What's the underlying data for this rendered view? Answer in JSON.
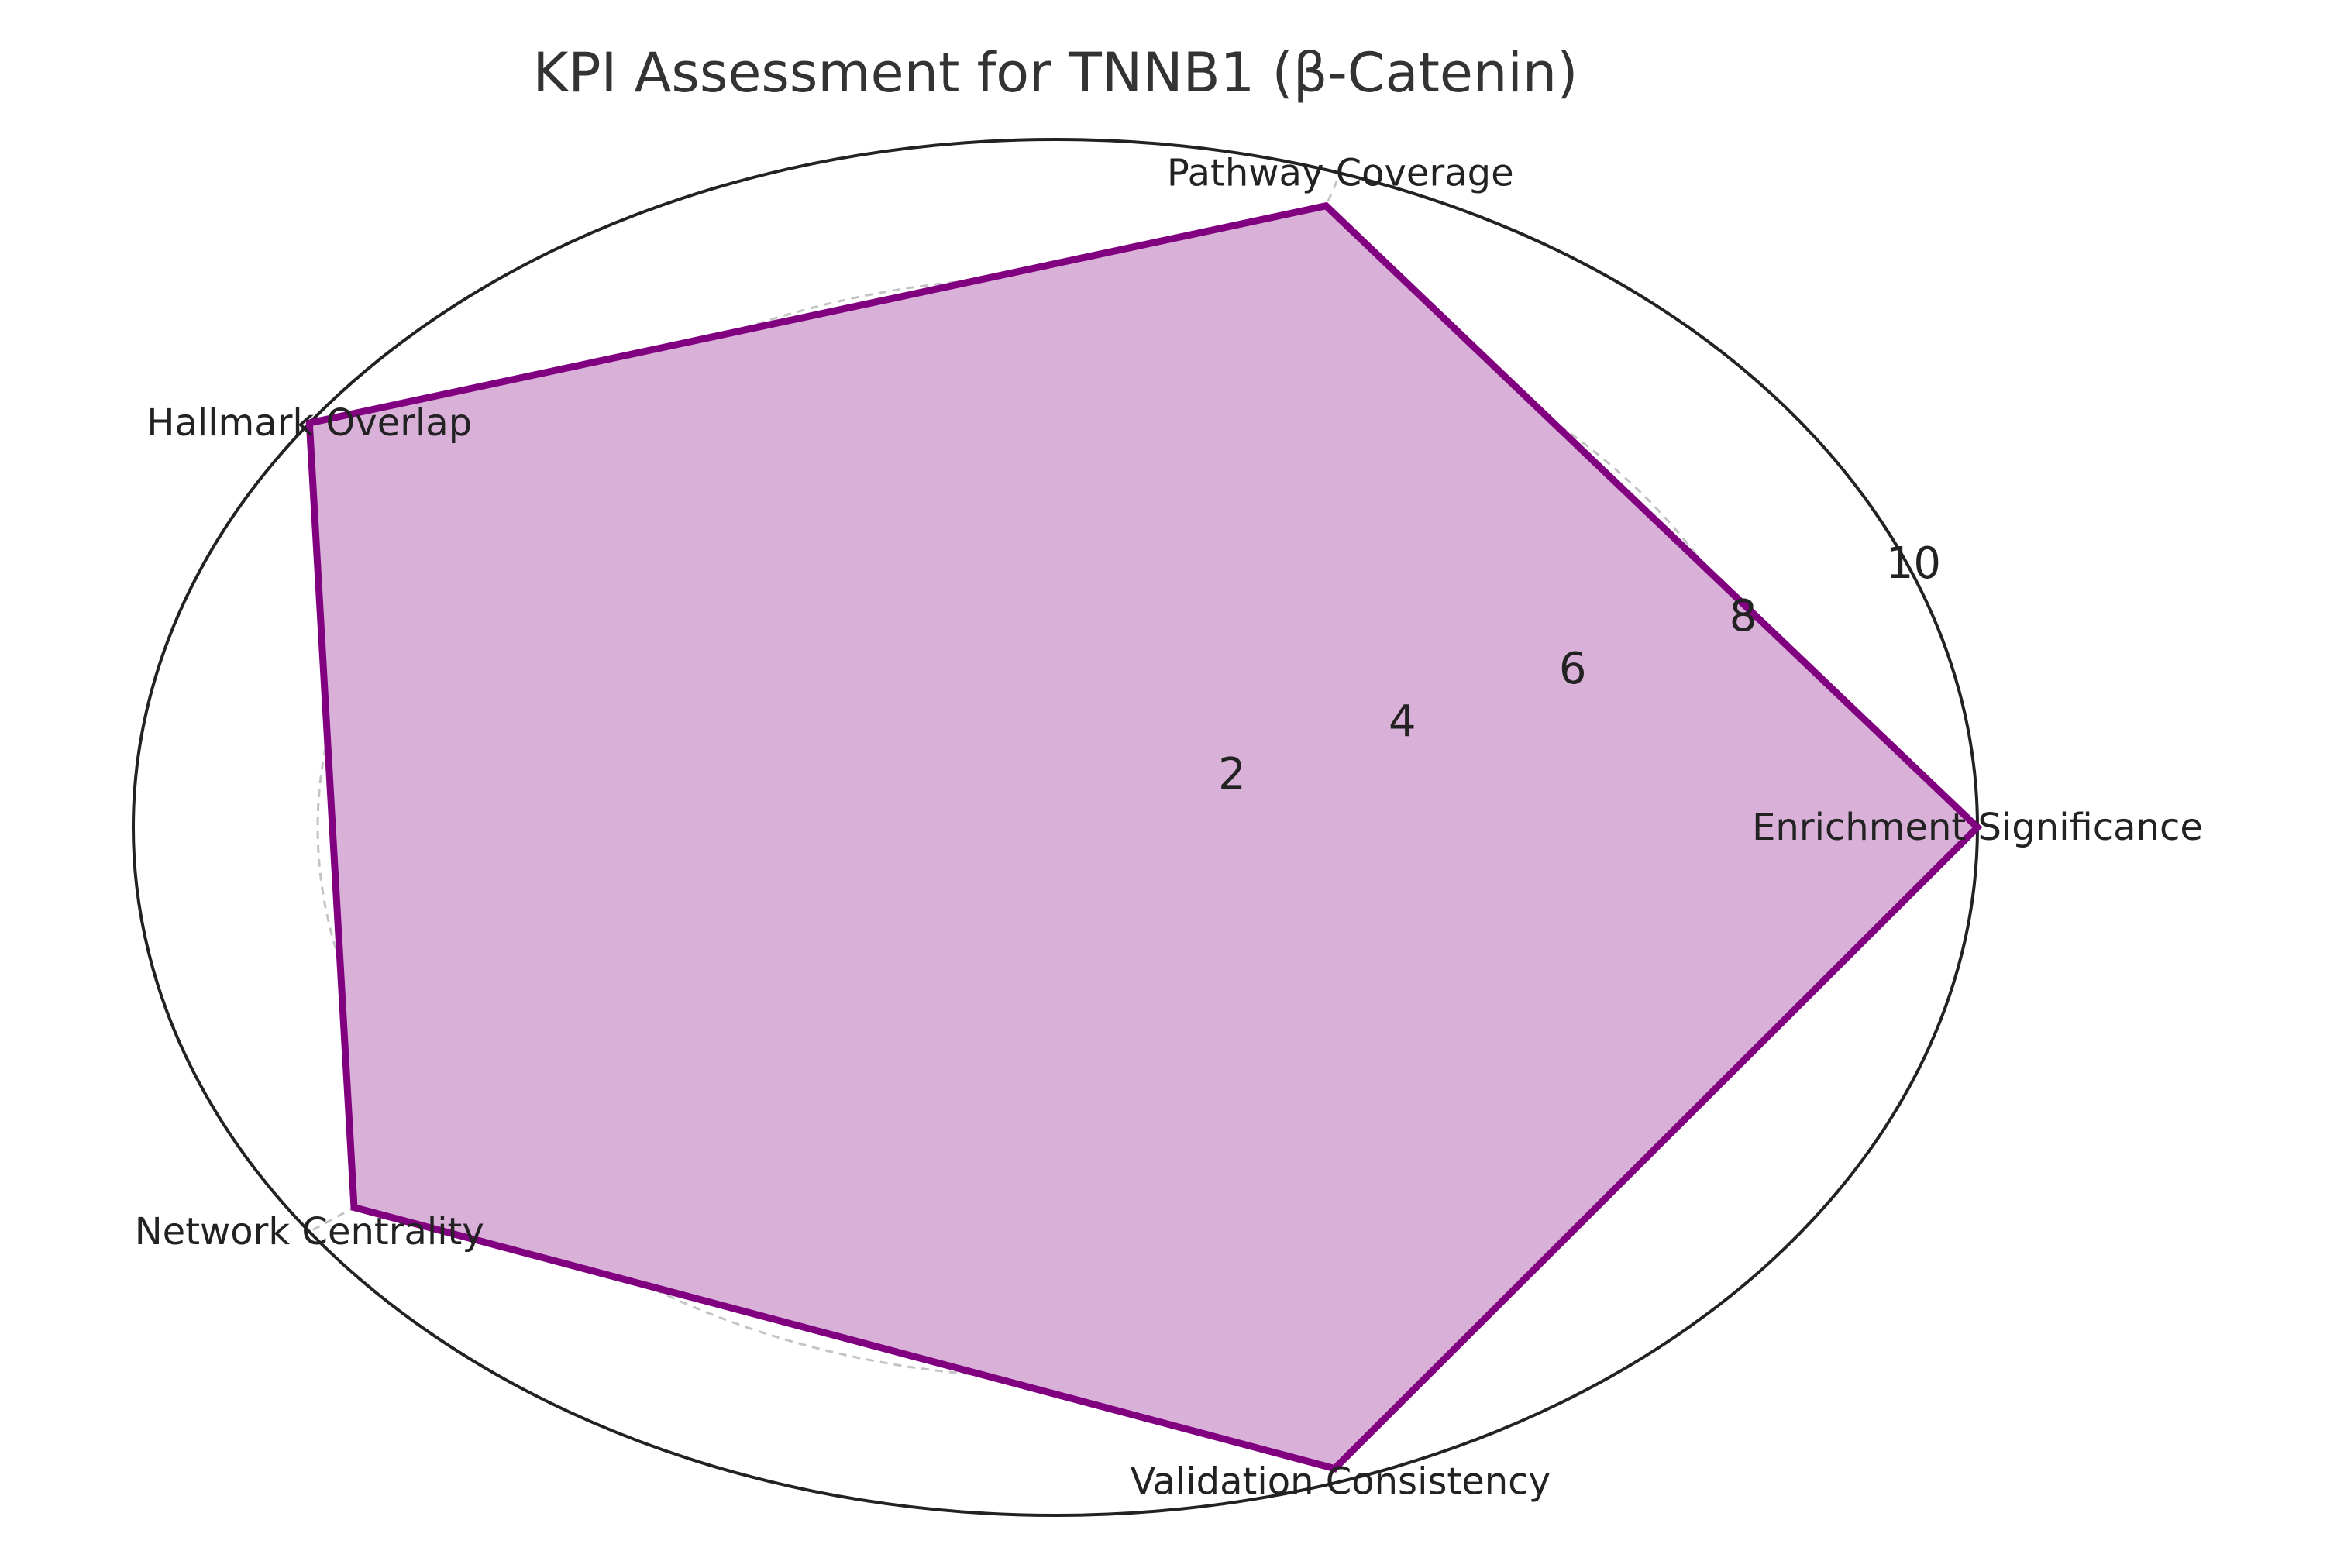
{
  "chart_data": {
    "type": "radar",
    "title": "KPI Assessment for TNNB1 (β-Catenin)",
    "axes": [
      "Enrichment Significance",
      "Pathway Coverage",
      "Hallmark Overlap",
      "Network Centrality",
      "Validation Consistency"
    ],
    "series": [
      {
        "values": [
          10,
          9.5,
          10,
          9.4,
          9.8
        ],
        "color": "#800080",
        "fill_color": "#d8b0d8"
      }
    ],
    "rlim": [
      0,
      10
    ],
    "r_ticks": [
      2,
      4,
      6,
      8,
      10
    ],
    "r_tick_labels": [
      "2",
      "4",
      "6",
      "8",
      "10"
    ],
    "grid": true
  }
}
